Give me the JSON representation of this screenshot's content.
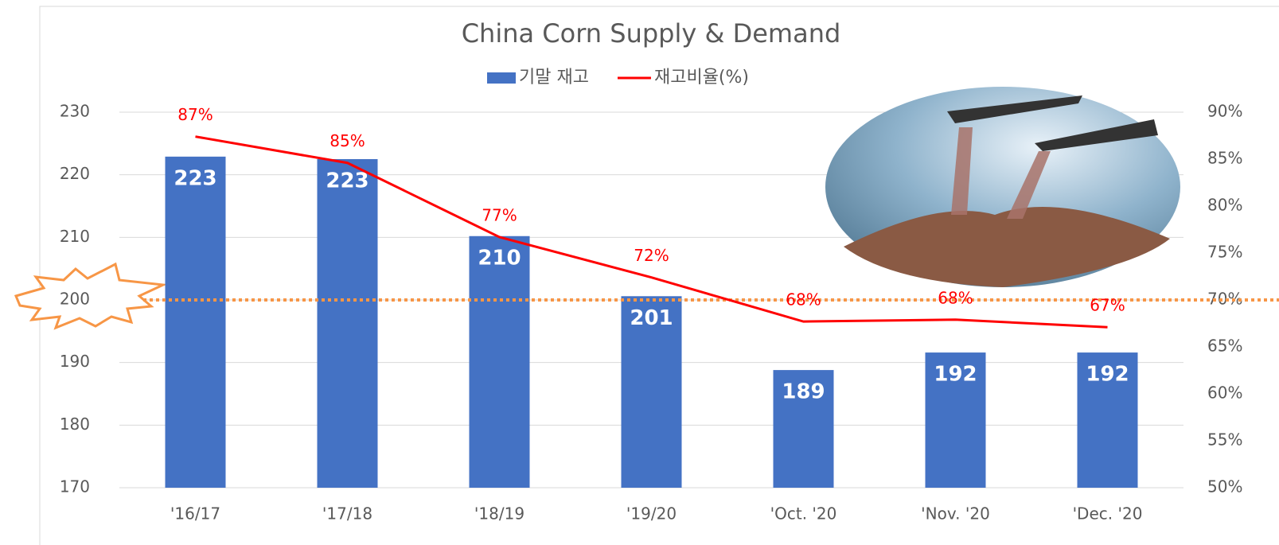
{
  "chart_data": {
    "type": "bar-line",
    "title": "China Corn Supply & Demand",
    "categories": [
      "'16/17",
      "'17/18",
      "'18/19",
      "'19/20",
      "'Oct. '20",
      "'Nov. '20",
      "'Dec. '20"
    ],
    "series": [
      {
        "name": "기말 재고",
        "type": "bar",
        "color": "#4472c4",
        "values": [
          222.9,
          222.5,
          210.2,
          200.6,
          188.8,
          191.6,
          191.6
        ],
        "value_labels": [
          "223",
          "223",
          "210",
          "201",
          "189",
          "192",
          "192"
        ]
      },
      {
        "name": "재고비율(%)",
        "type": "line",
        "axis": "y2",
        "color": "#ff0000",
        "values": [
          87.4,
          84.6,
          76.7,
          72.4,
          67.7,
          67.9,
          67.1
        ],
        "value_labels": [
          "87%",
          "85%",
          "77%",
          "72%",
          "68%",
          "68%",
          "67%"
        ]
      }
    ],
    "ylim": [
      170,
      230
    ],
    "yticks": [
      170,
      180,
      190,
      200,
      210,
      220,
      230
    ],
    "y2lim": [
      50,
      90
    ],
    "y2ticks": [
      {
        "value": 50,
        "label": "50%"
      },
      {
        "value": 55,
        "label": "55%"
      },
      {
        "value": 60,
        "label": "60%"
      },
      {
        "value": 65,
        "label": "65%"
      },
      {
        "value": 70,
        "label": "70%"
      },
      {
        "value": 75,
        "label": "75%"
      },
      {
        "value": 80,
        "label": "80%"
      },
      {
        "value": 85,
        "label": "85%"
      },
      {
        "value": 90,
        "label": "90%"
      }
    ],
    "grid": true,
    "legend": "top",
    "reference_line": {
      "value": 200,
      "color": "#f79646"
    }
  }
}
